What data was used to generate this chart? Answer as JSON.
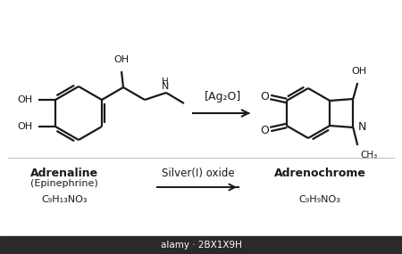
{
  "background_color": "#ffffff",
  "text_color": "#1a1a1a",
  "line_color": "#1a1a1a",
  "reagent_top": "[Ag₂O]",
  "reagent_bottom": "Silver(I) oxide",
  "left_name_bold": "Adrenaline",
  "left_name_paren": "(Epinephrine)",
  "left_formula": "C₉H₁₃NO₃",
  "right_name_bold": "Adrenochrome",
  "right_formula": "C₉H₉NO₃",
  "bottom_bar_color": "#2a2a2a",
  "watermark": "alamy · 2BX1X9H",
  "lw": 1.6,
  "figsize": [
    4.5,
    2.85
  ],
  "dpi": 100
}
